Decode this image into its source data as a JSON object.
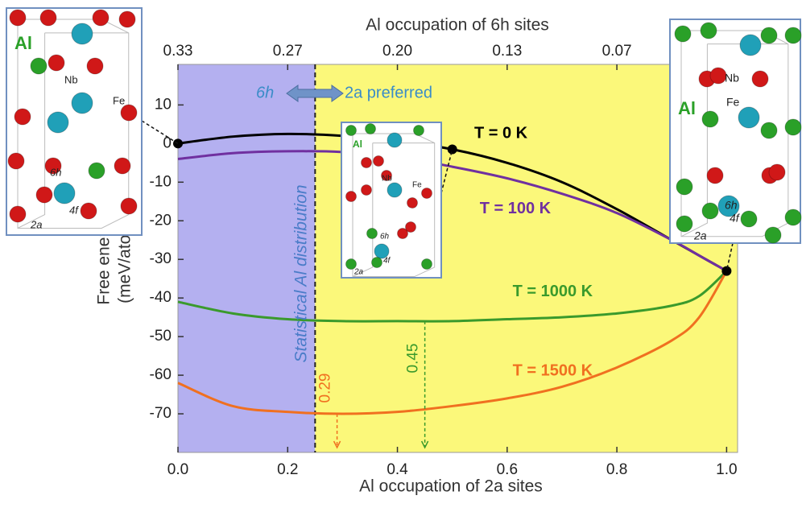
{
  "chart_data": {
    "type": "line",
    "xlabel": "Al occupation of 2a sites",
    "x2label": "Al occupation of 6h sites",
    "ylabel": [
      "Free energy",
      "(meV/atom)"
    ],
    "xlim": [
      0,
      1.02
    ],
    "ylim": [
      -80,
      20.5
    ],
    "xticks": [
      {
        "value": 0,
        "label": "0.0"
      },
      0.2,
      0.4,
      0.6,
      0.8,
      {
        "value": 1,
        "label": "1.0"
      }
    ],
    "x2ticks": [
      {
        "value": 0,
        "label": "0.33"
      },
      {
        "value": 0.2,
        "label": "0.27"
      },
      {
        "value": 0.4,
        "label": "0.20"
      },
      {
        "value": 0.6,
        "label": "0.13"
      },
      {
        "value": 0.8,
        "label": "0.07"
      }
    ],
    "yticks": [
      10,
      0,
      -10,
      -20,
      -30,
      -40,
      -50,
      -60,
      -70
    ],
    "x": [
      0,
      0.1,
      0.2,
      0.3,
      0.4,
      0.5,
      0.6,
      0.7,
      0.8,
      0.9,
      0.95,
      1.0
    ],
    "series": [
      {
        "name": "T = 0 K",
        "color": "#000000",
        "values": [
          0,
          1.8,
          2.5,
          2,
          0.7,
          -1.5,
          -5,
          -10,
          -17,
          -25,
          -29,
          -33
        ]
      },
      {
        "name": "T = 100 K",
        "color": "#7030a0",
        "values": [
          -4,
          -2.5,
          -2,
          -2.2,
          -3.5,
          -6,
          -9,
          -13,
          -18,
          -25,
          -29,
          -33
        ]
      },
      {
        "name": "T = 1000 K",
        "color": "#3a9a2c",
        "values": [
          -41,
          -44,
          -45.5,
          -46,
          -46,
          -46,
          -45.5,
          -45,
          -44,
          -42,
          -39.5,
          -33
        ]
      },
      {
        "name": "T = 1500 K",
        "color": "#f07020",
        "values": [
          -62,
          -68,
          -69.5,
          -70,
          -69.5,
          -68,
          -66,
          -63,
          -58,
          -51,
          -45,
          -33
        ]
      }
    ],
    "points": {
      "x": [
        0,
        0.5,
        1
      ],
      "values": [
        0,
        -1.5,
        -33
      ],
      "color": "#000000"
    },
    "boundary_x": 0.25,
    "region_colors": [
      "#b4b0f0",
      "#fbf87a"
    ],
    "region_label": "Statistical Al distribution",
    "preference_labels": [
      "6h",
      "2a preferred"
    ],
    "marked_x": [
      0.29,
      0.45
    ]
  },
  "insets": [
    {
      "labels": [
        "Al",
        "Nb",
        "Fe",
        "6h",
        "4f",
        "2a"
      ]
    },
    {
      "labels": [
        "Al",
        "Nb",
        "Fe",
        "6h",
        "4f",
        "2a"
      ]
    },
    {
      "labels": [
        "Al",
        "Nb",
        "Fe",
        "6h",
        "4f",
        "2a"
      ]
    }
  ]
}
